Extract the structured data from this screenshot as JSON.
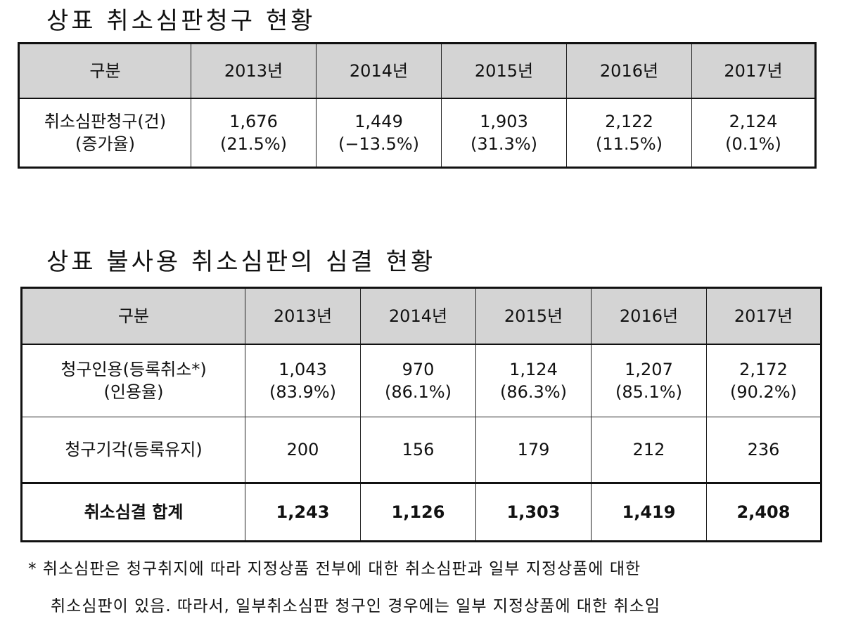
{
  "section1": {
    "title": "상표 취소심판청구 현황",
    "header": [
      "구분",
      "2013년",
      "2014년",
      "2015년",
      "2016년",
      "2017년"
    ],
    "row": {
      "label_line1": "취소심판청구(건)",
      "label_line2": "(증가율)",
      "cells": [
        {
          "value": "1,676",
          "rate": "(21.5%)"
        },
        {
          "value": "1,449",
          "rate": "(−13.5%)"
        },
        {
          "value": "1,903",
          "rate": "(31.3%)"
        },
        {
          "value": "2,122",
          "rate": "(11.5%)"
        },
        {
          "value": "2,124",
          "rate": "(0.1%)"
        }
      ]
    }
  },
  "section2": {
    "title": "상표 불사용 취소심판의 심결 현황",
    "header": [
      "구분",
      "2013년",
      "2014년",
      "2015년",
      "2016년",
      "2017년"
    ],
    "row_accepted": {
      "label_line1": "청구인용(등록취소*)",
      "label_line2": "(인용율)",
      "cells": [
        {
          "value": "1,043",
          "rate": "(83.9%)"
        },
        {
          "value": "970",
          "rate": "(86.1%)"
        },
        {
          "value": "1,124",
          "rate": "(86.3%)"
        },
        {
          "value": "1,207",
          "rate": "(85.1%)"
        },
        {
          "value": "2,172",
          "rate": "(90.2%)"
        }
      ]
    },
    "row_rejected": {
      "label": "청구기각(등록유지)",
      "cells": [
        "200",
        "156",
        "179",
        "212",
        "236"
      ]
    },
    "row_total": {
      "label": "취소심결 합계",
      "cells": [
        "1,243",
        "1,126",
        "1,303",
        "1,419",
        "2,408"
      ]
    }
  },
  "footnote": {
    "line1": "* 취소심판은 청구취지에 따라 지정상품 전부에 대한 취소심판과 일부 지정상품에 대한",
    "line2": "취소심판이 있음. 따라서, 일부취소심판 청구인 경우에는 일부 지정상품에 대한 취소임"
  }
}
